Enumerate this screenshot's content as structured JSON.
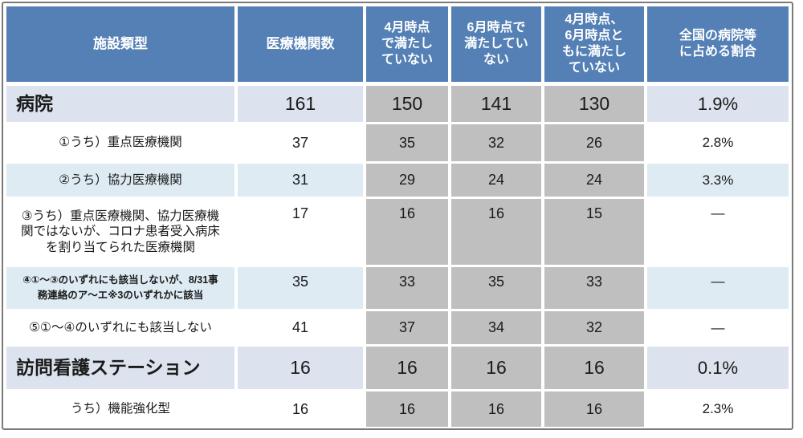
{
  "palette": {
    "header_bg": "#5480b5",
    "header_text": "#ffffff",
    "row_blue": "#dce3ee",
    "row_cyan": "#deebf3",
    "row_white": "#ffffff",
    "gray_cell": "#bfbfbf",
    "frame_border": "#7a7a7a",
    "text": "#1a1a1a"
  },
  "chart_data": {
    "type": "table",
    "columns": [
      "施設類型",
      "医療機関数",
      "4月時点\nで満たし\nていない",
      "6月時点で\n満たしてい\nない",
      "4月時点、\n6月時点と\nもに満たし\nていない",
      "全国の病院等\nに占める割合"
    ],
    "rows": [
      {
        "label": "病院",
        "emphasis": "main",
        "shade": "blue",
        "values": [
          "161",
          "150",
          "141",
          "130",
          "1.9%"
        ]
      },
      {
        "label": "①うち）重点医療機関",
        "emphasis": "sub",
        "shade": "white",
        "values": [
          "37",
          "35",
          "32",
          "26",
          "2.8%"
        ]
      },
      {
        "label": "②うち）協力医療機関",
        "emphasis": "sub",
        "shade": "cyan",
        "values": [
          "31",
          "29",
          "24",
          "24",
          "3.3%"
        ]
      },
      {
        "label": "③うち）重点医療機関、協力医療機\n関ではないが、コロナ患者受入病床\nを割り当てられた医療機関",
        "emphasis": "sub",
        "shade": "white",
        "valign": "top",
        "values": [
          "17",
          "16",
          "16",
          "15",
          "―"
        ]
      },
      {
        "label": "④①～③のいずれにも該当しないが、8/31事\n務連絡のア～エ※3のいずれかに該当",
        "emphasis": "sub-small",
        "shade": "cyan",
        "valign": "top",
        "values": [
          "35",
          "33",
          "35",
          "33",
          "―"
        ]
      },
      {
        "label": "⑤①～④のいずれにも該当しない",
        "emphasis": "sub",
        "shade": "white",
        "values": [
          "41",
          "37",
          "34",
          "32",
          "―"
        ]
      },
      {
        "label": "訪問看護ステーション",
        "emphasis": "main",
        "shade": "blue",
        "values": [
          "16",
          "16",
          "16",
          "16",
          "0.1%"
        ]
      },
      {
        "label": "うち）機能強化型",
        "emphasis": "sub",
        "shade": "white",
        "values": [
          "16",
          "16",
          "16",
          "16",
          "2.3%"
        ]
      }
    ]
  }
}
